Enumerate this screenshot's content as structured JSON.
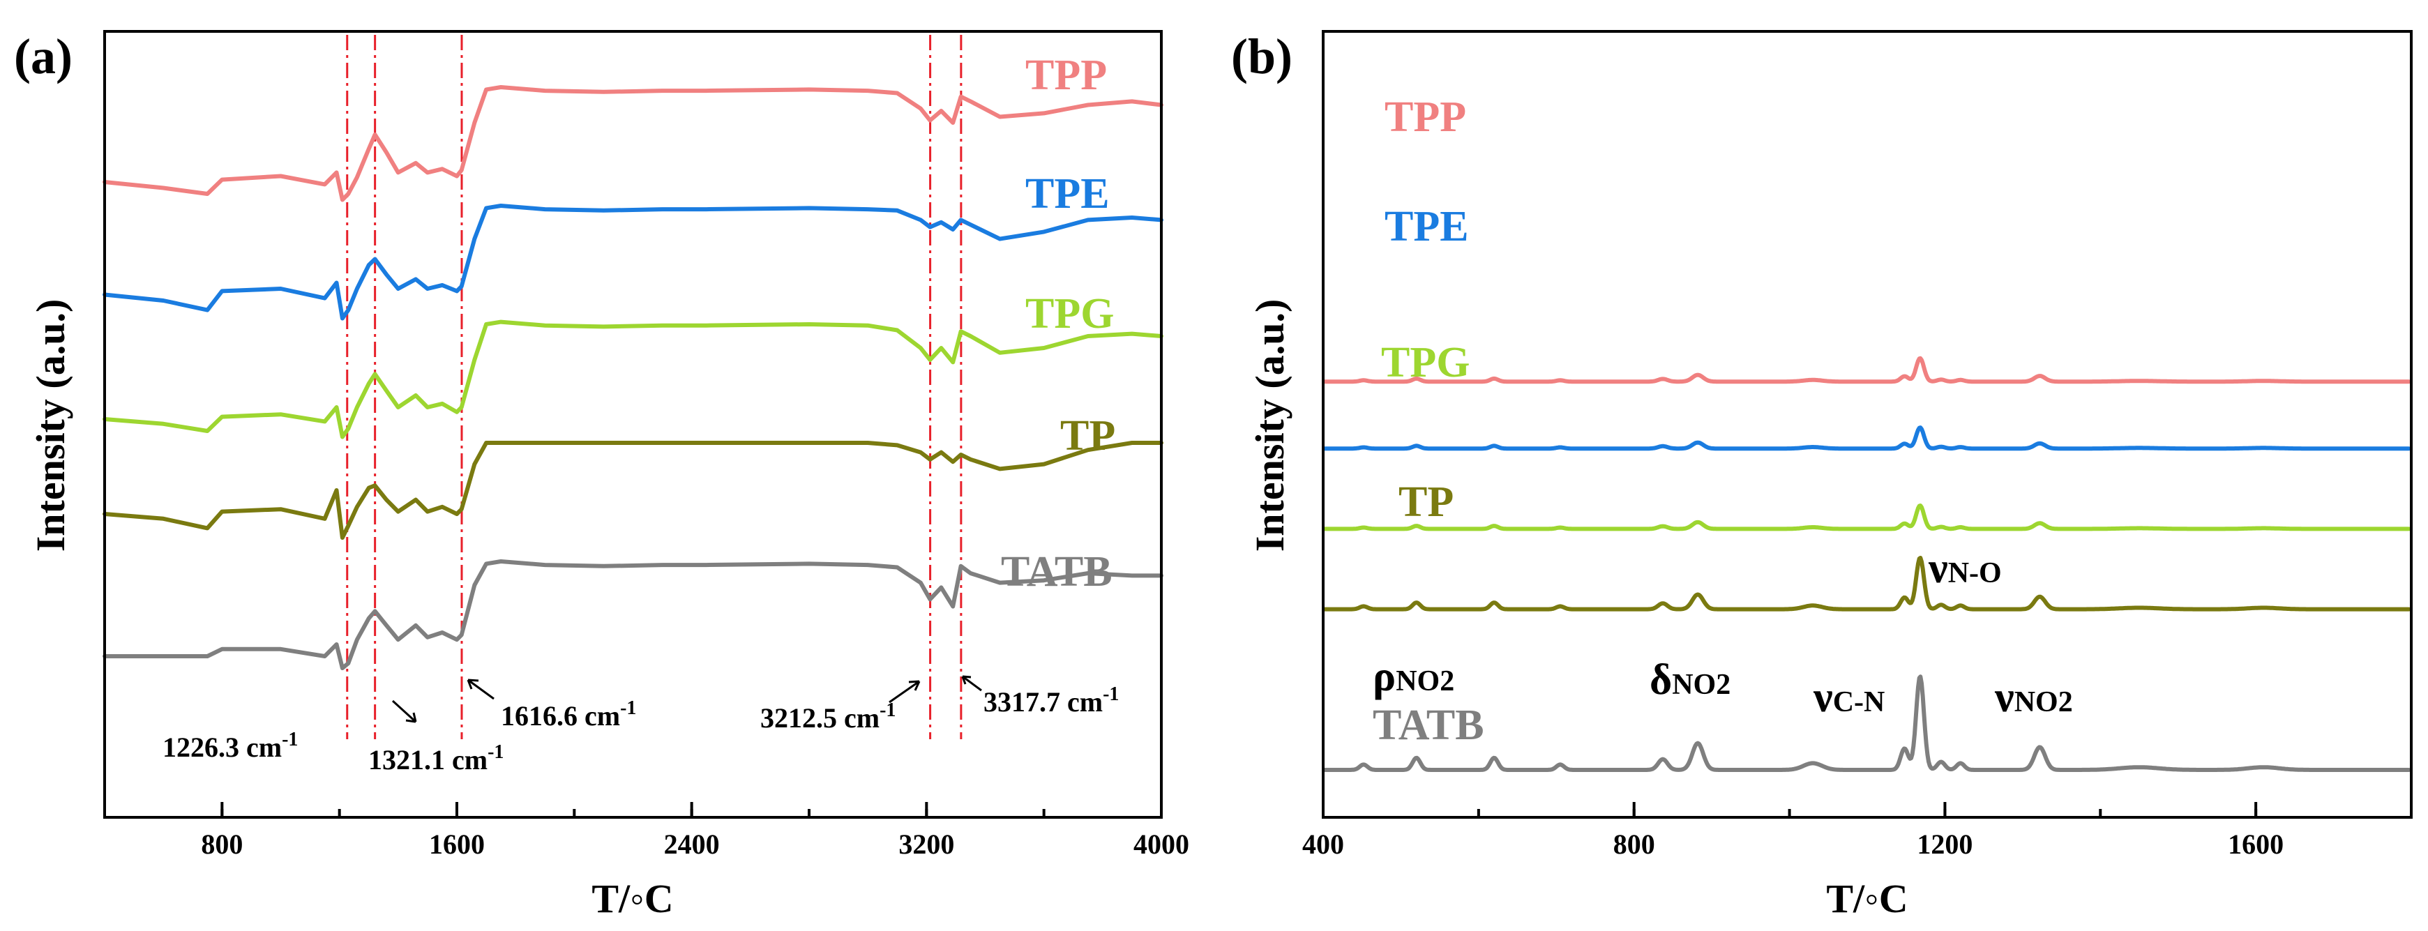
{
  "chart_data": [
    {
      "panel": "(a)",
      "type": "line",
      "xlabel": "T/◦C",
      "ylabel": "Intensity (a.u.)",
      "xlim": [
        400,
        4000
      ],
      "xticks": [
        "800",
        "1600",
        "2400",
        "3200",
        "4000"
      ],
      "x_minor_step": 400,
      "stacked_offset": true,
      "series": [
        {
          "name": "TPP",
          "color": "#f08080",
          "baseline": 4.0,
          "x": [
            400,
            600,
            750,
            800,
            1000,
            1150,
            1190,
            1210,
            1230,
            1260,
            1300,
            1321,
            1360,
            1400,
            1460,
            1500,
            1550,
            1600,
            1616,
            1660,
            1700,
            1750,
            1900,
            2100,
            2300,
            2450,
            2800,
            3000,
            3100,
            3180,
            3212,
            3250,
            3290,
            3317,
            3350,
            3450,
            3600,
            3750,
            3900,
            4000
          ],
          "y": [
            0.2,
            0.15,
            0.1,
            0.22,
            0.25,
            0.18,
            0.28,
            0.05,
            0.1,
            0.24,
            0.48,
            0.6,
            0.45,
            0.28,
            0.36,
            0.28,
            0.31,
            0.25,
            0.3,
            0.7,
            0.98,
            1.0,
            0.97,
            0.96,
            0.97,
            0.97,
            0.98,
            0.97,
            0.95,
            0.82,
            0.72,
            0.8,
            0.7,
            0.92,
            0.88,
            0.75,
            0.78,
            0.85,
            0.88,
            0.85
          ]
        },
        {
          "name": "TPE",
          "color": "#1a7ce0",
          "baseline": 3.0,
          "x": [
            400,
            600,
            750,
            800,
            1000,
            1150,
            1190,
            1210,
            1230,
            1260,
            1300,
            1321,
            1360,
            1400,
            1460,
            1500,
            1550,
            1600,
            1616,
            1660,
            1700,
            1750,
            1900,
            2100,
            2300,
            2450,
            2800,
            3000,
            3100,
            3180,
            3212,
            3250,
            3290,
            3317,
            3350,
            3450,
            3600,
            3750,
            3900,
            4000
          ],
          "y": [
            0.25,
            0.2,
            0.12,
            0.28,
            0.3,
            0.22,
            0.35,
            0.05,
            0.12,
            0.3,
            0.5,
            0.55,
            0.42,
            0.3,
            0.38,
            0.3,
            0.33,
            0.28,
            0.32,
            0.72,
            0.98,
            1.0,
            0.97,
            0.96,
            0.97,
            0.97,
            0.98,
            0.97,
            0.96,
            0.88,
            0.82,
            0.86,
            0.8,
            0.88,
            0.84,
            0.72,
            0.78,
            0.88,
            0.9,
            0.88
          ]
        },
        {
          "name": "TPG",
          "color": "#9dd630",
          "baseline": 2.0,
          "x": [
            400,
            600,
            750,
            800,
            1000,
            1150,
            1190,
            1210,
            1230,
            1260,
            1300,
            1321,
            1360,
            1400,
            1460,
            1500,
            1550,
            1600,
            1616,
            1660,
            1700,
            1750,
            1900,
            2100,
            2300,
            2450,
            2800,
            3000,
            3100,
            3180,
            3212,
            3250,
            3290,
            3317,
            3350,
            3450,
            3600,
            3750,
            3900,
            4000
          ],
          "y": [
            0.2,
            0.16,
            0.1,
            0.22,
            0.24,
            0.18,
            0.3,
            0.05,
            0.12,
            0.3,
            0.5,
            0.58,
            0.44,
            0.3,
            0.4,
            0.3,
            0.33,
            0.26,
            0.3,
            0.7,
            1.0,
            1.02,
            0.99,
            0.98,
            0.99,
            0.99,
            1.0,
            0.99,
            0.95,
            0.8,
            0.7,
            0.8,
            0.68,
            0.94,
            0.9,
            0.76,
            0.8,
            0.9,
            0.92,
            0.9
          ]
        },
        {
          "name": "TP",
          "color": "#7a7a10",
          "baseline": 1.0,
          "x": [
            400,
            600,
            750,
            800,
            1000,
            1150,
            1190,
            1210,
            1230,
            1260,
            1300,
            1321,
            1360,
            1400,
            1460,
            1500,
            1550,
            1600,
            1616,
            1660,
            1700,
            1750,
            1900,
            2100,
            2300,
            2450,
            2800,
            3000,
            3100,
            3180,
            3212,
            3250,
            3290,
            3317,
            3350,
            3450,
            3600,
            3750,
            3900,
            4000
          ],
          "y": [
            0.4,
            0.36,
            0.28,
            0.42,
            0.44,
            0.36,
            0.6,
            0.2,
            0.3,
            0.46,
            0.62,
            0.64,
            0.52,
            0.42,
            0.52,
            0.42,
            0.46,
            0.4,
            0.44,
            0.82,
            1.0,
            1.0,
            1.0,
            1.0,
            1.0,
            1.0,
            1.0,
            1.0,
            0.98,
            0.92,
            0.86,
            0.92,
            0.84,
            0.9,
            0.86,
            0.78,
            0.82,
            0.94,
            1.0,
            1.0
          ]
        },
        {
          "name": "TATB",
          "color": "#7f7f7f",
          "baseline": 0.0,
          "x": [
            400,
            600,
            750,
            800,
            1000,
            1150,
            1190,
            1210,
            1230,
            1260,
            1300,
            1321,
            1360,
            1400,
            1460,
            1500,
            1550,
            1600,
            1616,
            1660,
            1700,
            1750,
            1900,
            2100,
            2300,
            2450,
            2800,
            3000,
            3100,
            3180,
            3212,
            3250,
            3290,
            3317,
            3350,
            3450,
            3600,
            3750,
            3900,
            4000
          ],
          "y": [
            0.2,
            0.2,
            0.2,
            0.26,
            0.26,
            0.2,
            0.3,
            0.1,
            0.14,
            0.34,
            0.52,
            0.58,
            0.46,
            0.34,
            0.46,
            0.36,
            0.4,
            0.34,
            0.38,
            0.8,
            0.98,
            1.0,
            0.97,
            0.96,
            0.97,
            0.97,
            0.98,
            0.97,
            0.95,
            0.82,
            0.68,
            0.78,
            0.62,
            0.96,
            0.9,
            0.82,
            0.84,
            0.9,
            0.88,
            0.88
          ]
        }
      ],
      "vlines": [
        1226.3,
        1321.1,
        1616.6,
        3212.5,
        3317.7
      ],
      "annotations": [
        "1226.3 cm",
        "1321.1 cm",
        "1616.6 cm",
        "3212.5 cm",
        "3317.7 cm"
      ],
      "annotation_sup": "-1"
    },
    {
      "panel": "(b)",
      "type": "line",
      "xlabel": "T/◦C",
      "ylabel": "Intensity (a.u.)",
      "xlim": [
        400,
        1800
      ],
      "xticks": [
        "400",
        "800",
        "1200",
        "1600"
      ],
      "x_minor_step": 200,
      "stacked_offset": true,
      "peaks": [
        {
          "x": 452,
          "w": 5,
          "h": 0.04
        },
        {
          "x": 520,
          "w": 5,
          "h": 0.09
        },
        {
          "x": 620,
          "w": 5,
          "h": 0.09
        },
        {
          "x": 705,
          "w": 5,
          "h": 0.04
        },
        {
          "x": 837,
          "w": 6,
          "h": 0.08
        },
        {
          "x": 882,
          "w": 7,
          "h": 0.2
        },
        {
          "x": 1030,
          "w": 12,
          "h": 0.05
        },
        {
          "x": 1148,
          "w": 5,
          "h": 0.16
        },
        {
          "x": 1168,
          "w": 5,
          "h": 0.7
        },
        {
          "x": 1195,
          "w": 5,
          "h": 0.06
        },
        {
          "x": 1220,
          "w": 5,
          "h": 0.05
        },
        {
          "x": 1322,
          "w": 7,
          "h": 0.17
        },
        {
          "x": 1450,
          "w": 25,
          "h": 0.02
        },
        {
          "x": 1610,
          "w": 20,
          "h": 0.02
        }
      ],
      "series": [
        {
          "name": "TPP",
          "color": "#f08080",
          "baseline": 4.3,
          "scale": 0.5
        },
        {
          "name": "TPE",
          "color": "#1a7ce0",
          "baseline": 3.3,
          "scale": 0.45
        },
        {
          "name": "TPG",
          "color": "#9dd630",
          "baseline": 2.1,
          "scale": 0.5
        },
        {
          "name": "TP",
          "color": "#7a7a10",
          "baseline": 0.9,
          "scale": 1.1
        },
        {
          "name": "TATB",
          "color": "#7f7f7f",
          "baseline": -1.5,
          "scale": 2.0
        }
      ],
      "band_labels": [
        {
          "main": "ρ",
          "sub": "NO2"
        },
        {
          "main": "δ",
          "sub": "NO2"
        },
        {
          "main": "ν",
          "sub": "C-N"
        },
        {
          "main": "ν",
          "sub": "N-O"
        },
        {
          "main": "ν",
          "sub": "NO2"
        }
      ]
    }
  ]
}
